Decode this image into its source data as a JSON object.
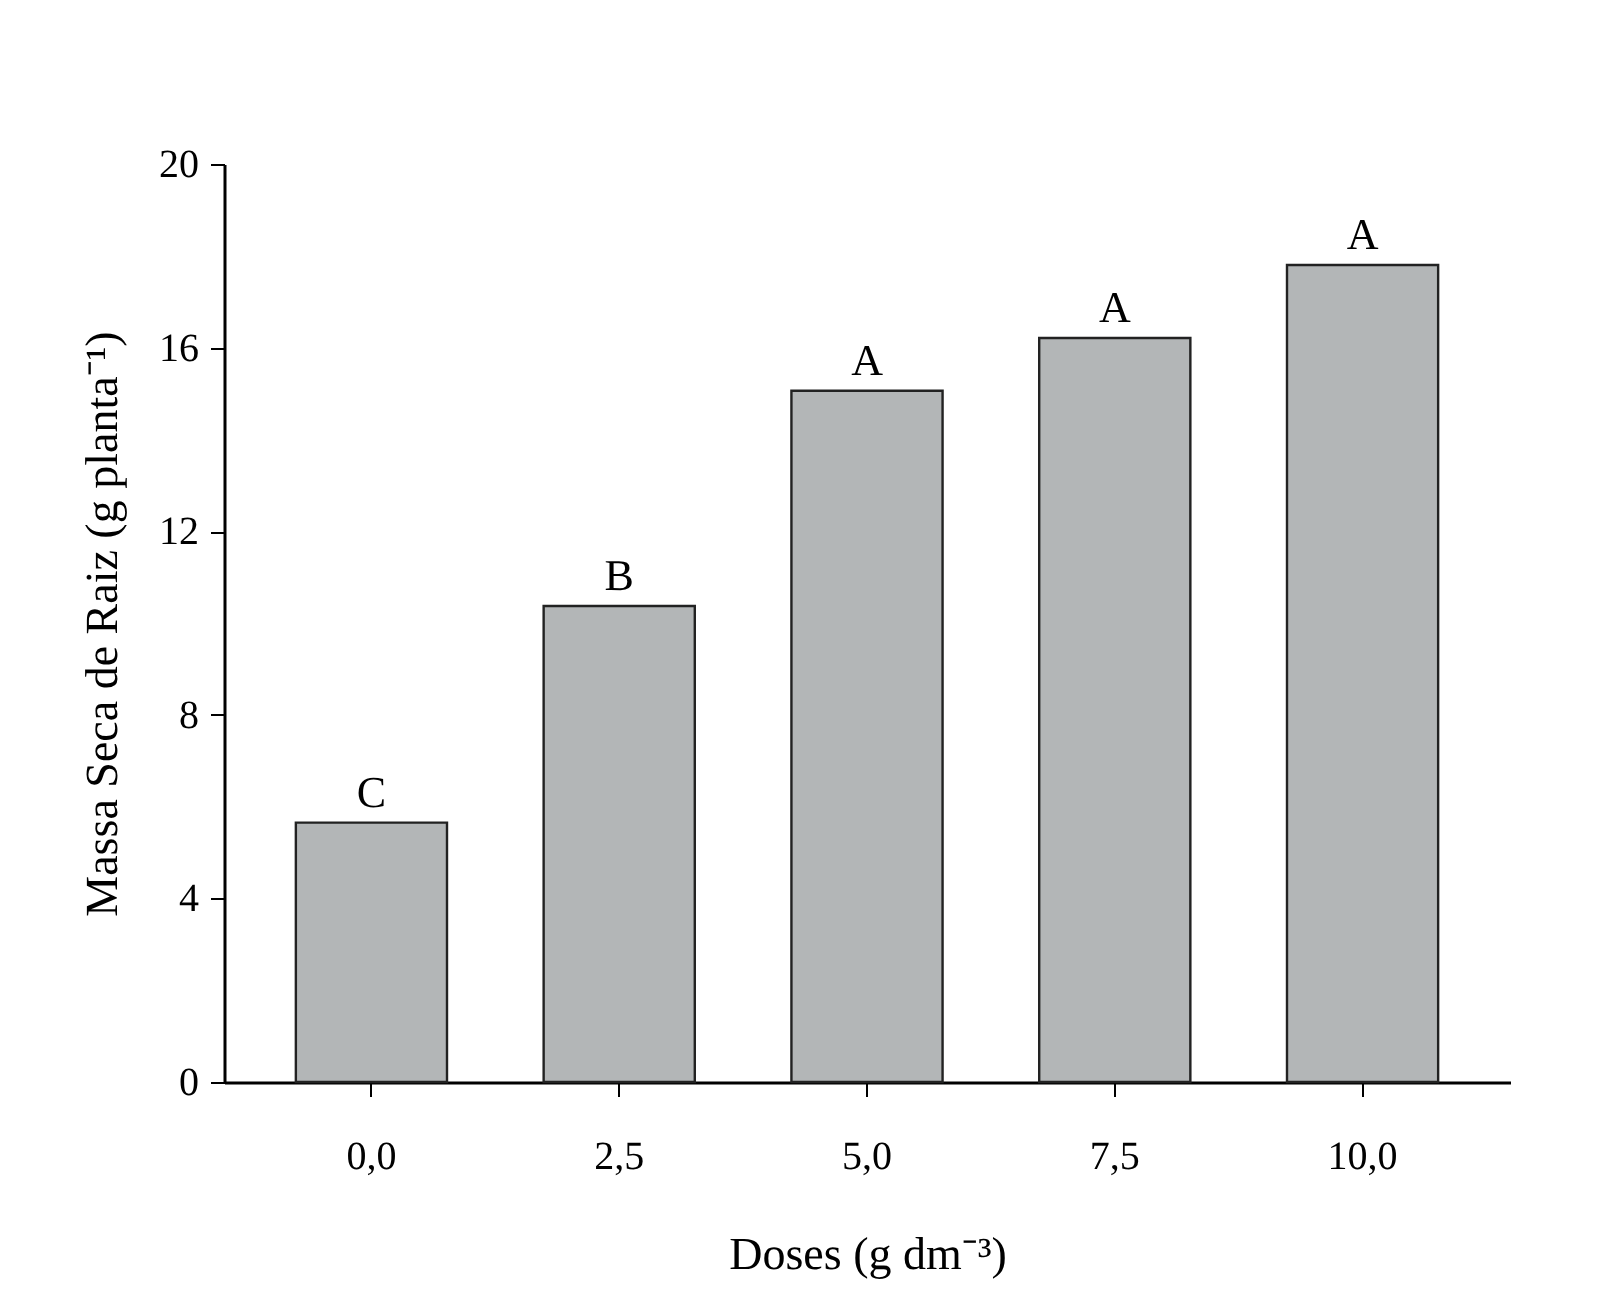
{
  "chart_data": {
    "type": "bar",
    "categories": [
      "0,0",
      "2,5",
      "5,0",
      "7,5",
      "10,0"
    ],
    "values": [
      5.65,
      10.37,
      15.06,
      16.21,
      17.8
    ],
    "color": "#b3b6b7",
    "xlabel": "Doses (g dm⁻³)",
    "ylabel": "Massa Seca de Raiz (g planta⁻¹)",
    "ylim": [
      0,
      20
    ],
    "yticks": [
      0,
      4,
      8,
      12,
      16,
      20
    ],
    "grid": false,
    "annotations": [
      {
        "text": "C",
        "x": "0,0",
        "y": 5.65
      },
      {
        "text": "B",
        "x": "2,5",
        "y": 10.37
      },
      {
        "text": "A",
        "x": "5,0",
        "y": 15.06
      },
      {
        "text": "A",
        "x": "7,5",
        "y": 16.21
      },
      {
        "text": "A",
        "x": "10,0",
        "y": 17.8
      }
    ]
  }
}
